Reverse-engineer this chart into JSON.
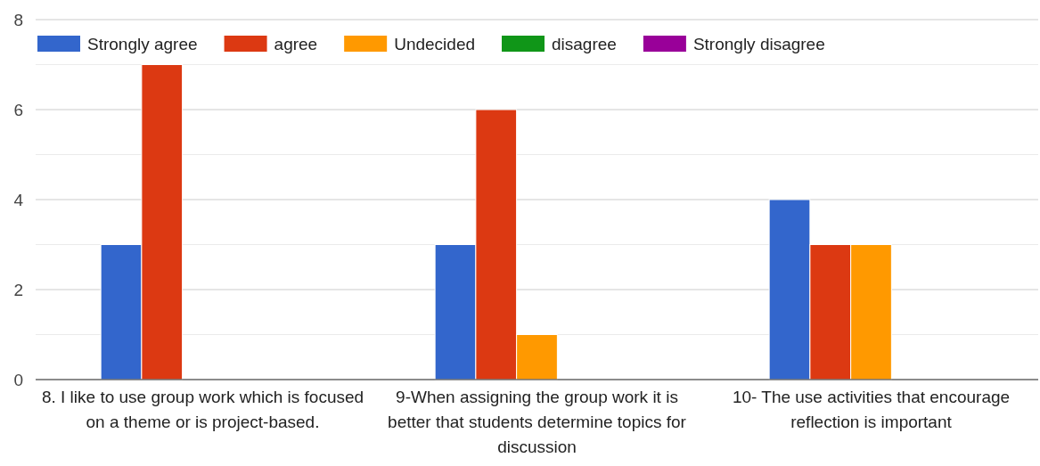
{
  "chart_data": {
    "type": "bar",
    "categories": [
      "8. I like to use group work which is focused on a theme or is project-based.",
      "9-When assigning the group work it is better that students determine topics for discussion",
      "10- The use activities that encourage reflection is important"
    ],
    "series": [
      {
        "name": "Strongly agree",
        "color": "#3366cc",
        "values": [
          3,
          3,
          4
        ]
      },
      {
        "name": "agree",
        "color": "#dc3912",
        "values": [
          7,
          6,
          3
        ]
      },
      {
        "name": "Undecided",
        "color": "#ff9900",
        "values": [
          0,
          1,
          3
        ]
      },
      {
        "name": "disagree",
        "color": "#109618",
        "values": [
          0,
          0,
          0
        ]
      },
      {
        "name": "Strongly disagree",
        "color": "#990099",
        "values": [
          0,
          0,
          0
        ]
      }
    ],
    "ylim": [
      0,
      8
    ],
    "yticks": [
      0,
      {
        "value": 1,
        "label": null
      },
      2,
      {
        "value": 3,
        "label": null
      },
      4,
      {
        "value": 5,
        "label": null
      },
      6,
      {
        "value": 7,
        "label": null
      },
      8
    ],
    "grid": "y",
    "legend": "top left"
  }
}
